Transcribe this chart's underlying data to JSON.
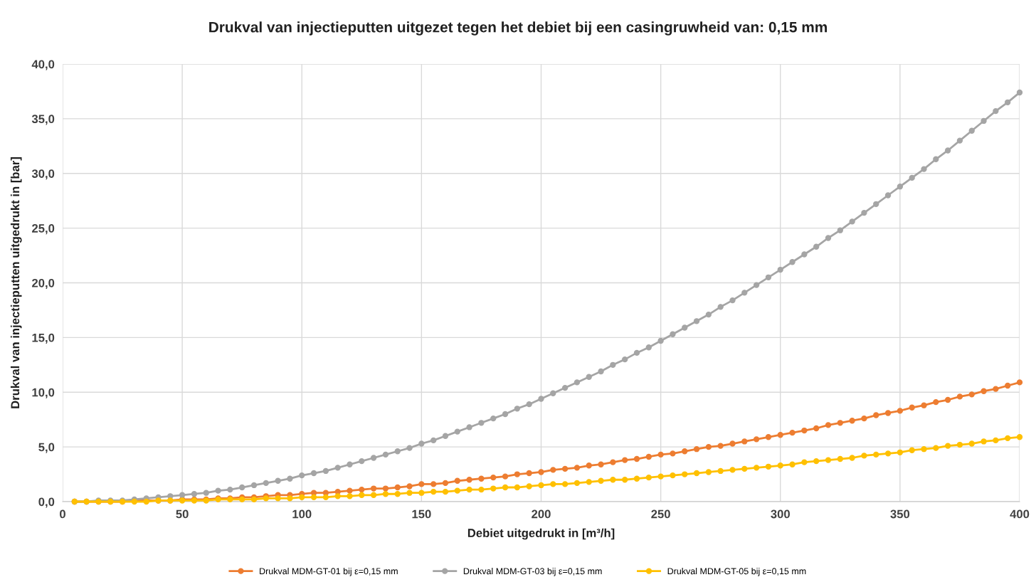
{
  "chart_data": {
    "type": "line",
    "title": "Drukval van injectieputten uitgezet tegen het debiet bij een casingruwheid van: 0,15 mm",
    "xlabel": "Debiet uitgedrukt in [m³/h]",
    "ylabel": "Drukval van injectieputten uitgedrukt in [bar]",
    "x": [
      5,
      10,
      15,
      20,
      25,
      30,
      35,
      40,
      45,
      50,
      55,
      60,
      65,
      70,
      75,
      80,
      85,
      90,
      95,
      100,
      105,
      110,
      115,
      120,
      125,
      130,
      135,
      140,
      145,
      150,
      155,
      160,
      165,
      170,
      175,
      180,
      185,
      190,
      195,
      200,
      205,
      210,
      215,
      220,
      225,
      230,
      235,
      240,
      245,
      250,
      255,
      260,
      265,
      270,
      275,
      280,
      285,
      290,
      295,
      300,
      305,
      310,
      315,
      320,
      325,
      330,
      335,
      340,
      345,
      350,
      355,
      360,
      365,
      370,
      375,
      380,
      385,
      390,
      395,
      400
    ],
    "series": [
      {
        "name": "Drukval MDM-GT-01 bij ε=0,15 mm",
        "color": "#ed7d31",
        "values": [
          0.0,
          0.0,
          0.0,
          0.0,
          0.0,
          0.1,
          0.1,
          0.1,
          0.1,
          0.2,
          0.2,
          0.2,
          0.3,
          0.3,
          0.4,
          0.4,
          0.5,
          0.6,
          0.6,
          0.7,
          0.8,
          0.8,
          0.9,
          1.0,
          1.1,
          1.2,
          1.2,
          1.3,
          1.4,
          1.6,
          1.6,
          1.7,
          1.9,
          2.0,
          2.1,
          2.2,
          2.3,
          2.5,
          2.6,
          2.7,
          2.9,
          3.0,
          3.1,
          3.3,
          3.4,
          3.6,
          3.8,
          3.9,
          4.1,
          4.3,
          4.4,
          4.6,
          4.8,
          5.0,
          5.1,
          5.3,
          5.5,
          5.7,
          5.9,
          6.1,
          6.3,
          6.5,
          6.7,
          7.0,
          7.2,
          7.4,
          7.6,
          7.9,
          8.1,
          8.3,
          8.6,
          8.8,
          9.1,
          9.3,
          9.6,
          9.8,
          10.1,
          10.3,
          10.6,
          10.9
        ]
      },
      {
        "name": "Drukval MDM-GT-03 bij ε=0,15 mm",
        "color": "#a5a5a5",
        "values": [
          0.0,
          0.0,
          0.1,
          0.1,
          0.1,
          0.2,
          0.3,
          0.4,
          0.5,
          0.6,
          0.7,
          0.8,
          1.0,
          1.1,
          1.3,
          1.5,
          1.7,
          1.9,
          2.1,
          2.4,
          2.6,
          2.8,
          3.1,
          3.4,
          3.7,
          4.0,
          4.3,
          4.6,
          4.9,
          5.3,
          5.6,
          6.0,
          6.4,
          6.8,
          7.2,
          7.6,
          8.0,
          8.5,
          8.9,
          9.4,
          9.9,
          10.4,
          10.9,
          11.4,
          11.9,
          12.5,
          13.0,
          13.6,
          14.1,
          14.7,
          15.3,
          15.9,
          16.5,
          17.1,
          17.8,
          18.4,
          19.1,
          19.8,
          20.5,
          21.2,
          21.9,
          22.6,
          23.3,
          24.1,
          24.8,
          25.6,
          26.4,
          27.2,
          28.0,
          28.8,
          29.6,
          30.4,
          31.3,
          32.1,
          33.0,
          33.9,
          34.8,
          35.7,
          36.5,
          37.4
        ]
      },
      {
        "name": "Drukval MDM-GT-05 bij ε=0,15 mm",
        "color": "#ffc000",
        "values": [
          0.0,
          0.0,
          0.0,
          0.0,
          0.0,
          0.0,
          0.0,
          0.1,
          0.1,
          0.1,
          0.1,
          0.1,
          0.2,
          0.2,
          0.2,
          0.2,
          0.3,
          0.3,
          0.3,
          0.4,
          0.4,
          0.4,
          0.5,
          0.5,
          0.6,
          0.6,
          0.7,
          0.7,
          0.8,
          0.8,
          0.9,
          0.9,
          1.0,
          1.1,
          1.1,
          1.2,
          1.3,
          1.3,
          1.4,
          1.5,
          1.6,
          1.6,
          1.7,
          1.8,
          1.9,
          2.0,
          2.0,
          2.1,
          2.2,
          2.3,
          2.4,
          2.5,
          2.6,
          2.7,
          2.8,
          2.9,
          3.0,
          3.1,
          3.2,
          3.3,
          3.4,
          3.6,
          3.7,
          3.8,
          3.9,
          4.0,
          4.2,
          4.3,
          4.4,
          4.5,
          4.7,
          4.8,
          4.9,
          5.1,
          5.2,
          5.3,
          5.5,
          5.6,
          5.8,
          5.9
        ]
      }
    ],
    "xlim": [
      0,
      400
    ],
    "xticks": [
      0,
      50,
      100,
      150,
      200,
      250,
      300,
      350,
      400
    ],
    "ylim": [
      0,
      40
    ],
    "yticks": [
      {
        "value": 0,
        "label": "0,0"
      },
      {
        "value": 5,
        "label": "5,0"
      },
      {
        "value": 10,
        "label": "10,0"
      },
      {
        "value": 15,
        "label": "15,0"
      },
      {
        "value": 20,
        "label": "20,0"
      },
      {
        "value": 25,
        "label": "25,0"
      },
      {
        "value": 30,
        "label": "30,0"
      },
      {
        "value": 35,
        "label": "35,0"
      },
      {
        "value": 40,
        "label": "40,0"
      }
    ],
    "grid": true,
    "legend": "bottom",
    "marker": "circle",
    "line_style": "solid"
  }
}
